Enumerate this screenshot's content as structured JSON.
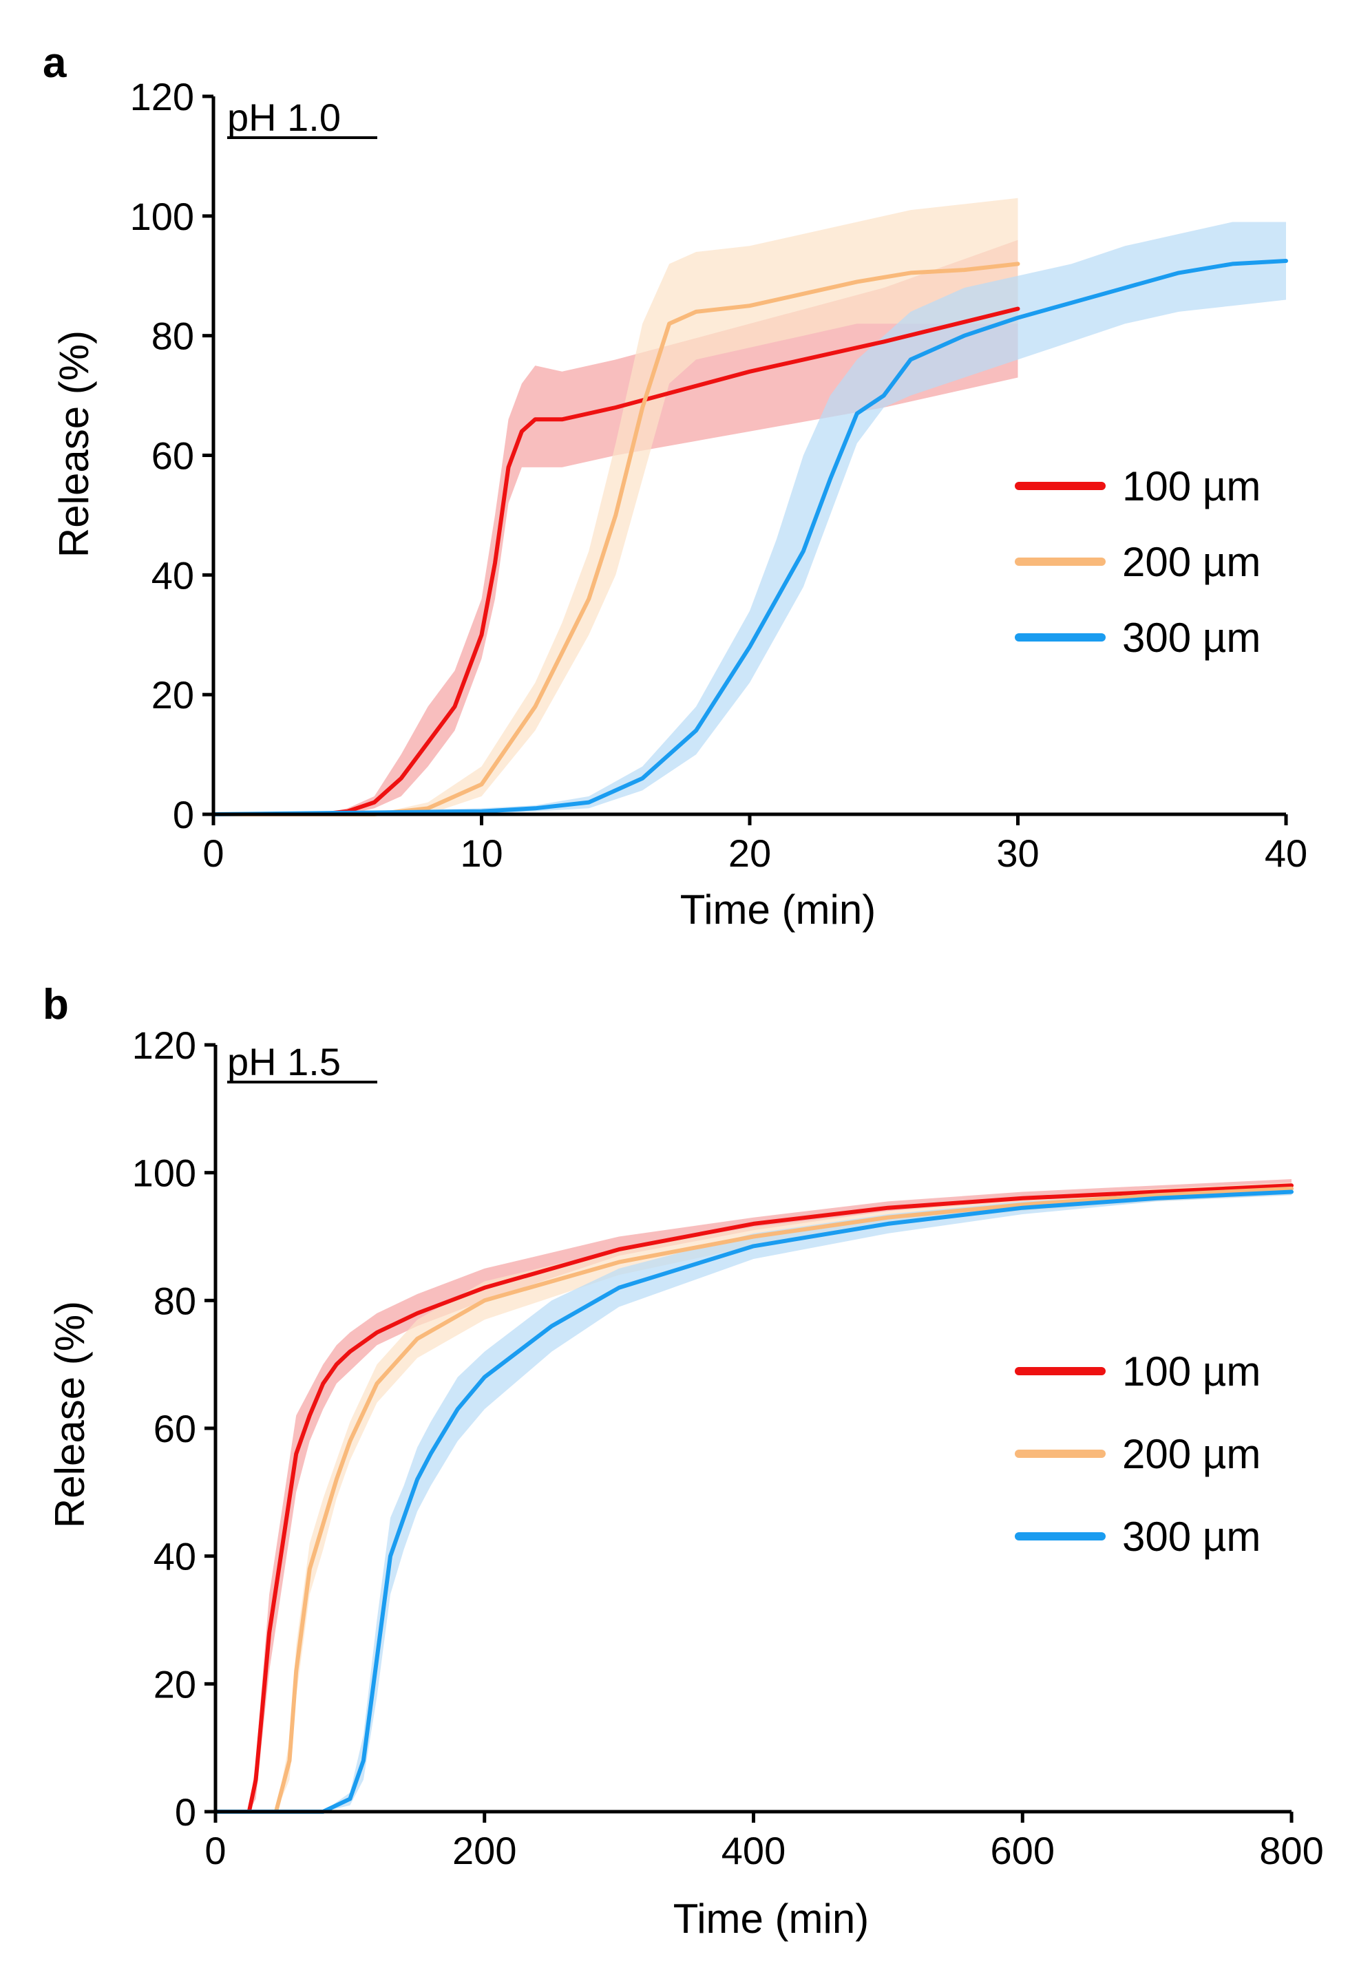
{
  "chart_data": [
    {
      "type": "line",
      "panel": "a",
      "condition": "pH 1.0",
      "xlabel": "Time (min)",
      "ylabel": "Release (%)",
      "xlim": [
        0,
        40
      ],
      "ylim": [
        0,
        120
      ],
      "xticks": [
        0,
        10,
        20,
        30,
        40
      ],
      "yticks": [
        0,
        20,
        40,
        60,
        80,
        100,
        120
      ],
      "legend_position": "right-middle",
      "shaded_band": true,
      "series": [
        {
          "name": "100 µm",
          "color": "#ee1111",
          "band_color": "#f5a3a3",
          "x": [
            0,
            4,
            5,
            6,
            7,
            8,
            9,
            10,
            10.5,
            11,
            11.5,
            12,
            13,
            15,
            20,
            25,
            30
          ],
          "y": [
            0,
            0,
            0.5,
            2,
            6,
            12,
            18,
            30,
            42,
            58,
            64,
            66,
            66,
            68,
            74,
            79,
            84.5
          ],
          "lower": [
            0,
            0,
            0,
            1,
            3,
            8,
            14,
            26,
            36,
            52,
            58,
            58,
            58,
            60,
            64,
            68,
            73
          ],
          "upper": [
            0,
            0,
            1,
            3,
            10,
            18,
            24,
            36,
            50,
            66,
            72,
            75,
            74,
            76,
            82,
            88,
            96
          ]
        },
        {
          "name": "200 µm",
          "color": "#f9b97a",
          "band_color": "#fce2c8",
          "x": [
            0,
            6,
            8,
            10,
            12,
            13,
            14,
            15,
            16,
            17,
            18,
            20,
            22,
            24,
            26,
            28,
            30
          ],
          "y": [
            0,
            0,
            1,
            5,
            18,
            27,
            36,
            50,
            68,
            82,
            84,
            85,
            87,
            89,
            90.5,
            91,
            92
          ],
          "lower": [
            0,
            0,
            0,
            3,
            14,
            22,
            30,
            40,
            56,
            72,
            76,
            78,
            80,
            82,
            82,
            82,
            82
          ],
          "upper": [
            0,
            0,
            2,
            8,
            22,
            32,
            44,
            62,
            82,
            92,
            94,
            95,
            97,
            99,
            101,
            102,
            103
          ]
        },
        {
          "name": "300 µm",
          "color": "#1a9cf0",
          "band_color": "#b8dcf7",
          "x": [
            0,
            10,
            12,
            14,
            16,
            18,
            20,
            21,
            22,
            23,
            24,
            25,
            26,
            28,
            30,
            32,
            34,
            36,
            38,
            40
          ],
          "y": [
            0,
            0.5,
            1,
            2,
            6,
            14,
            28,
            36,
            44,
            56,
            67,
            70,
            76,
            80,
            83,
            85.5,
            88,
            90.5,
            92,
            92.5
          ],
          "lower": [
            0,
            0,
            0.5,
            1,
            4,
            10,
            22,
            30,
            38,
            50,
            62,
            68,
            70,
            73,
            76,
            79,
            82,
            84,
            85,
            86
          ],
          "upper": [
            0,
            1,
            1.5,
            3,
            8,
            18,
            34,
            46,
            60,
            70,
            76,
            80,
            84,
            88,
            90,
            92,
            95,
            97,
            99,
            99
          ]
        }
      ]
    },
    {
      "type": "line",
      "panel": "b",
      "condition": "pH 1.5",
      "xlabel": "Time (min)",
      "ylabel": "Release (%)",
      "xlim": [
        0,
        800
      ],
      "ylim": [
        0,
        120
      ],
      "xticks": [
        0,
        200,
        400,
        600,
        800
      ],
      "yticks": [
        0,
        20,
        40,
        60,
        80,
        100,
        120
      ],
      "legend_position": "right-middle",
      "shaded_band": true,
      "series": [
        {
          "name": "100 µm",
          "color": "#ee1111",
          "band_color": "#f5a3a3",
          "x": [
            0,
            25,
            30,
            40,
            50,
            60,
            70,
            80,
            90,
            100,
            120,
            150,
            200,
            300,
            400,
            500,
            600,
            700,
            800
          ],
          "y": [
            0,
            0,
            5,
            28,
            42,
            56,
            62,
            67,
            70,
            72,
            75,
            78,
            82,
            88,
            92,
            94.5,
            96,
            97,
            98
          ],
          "lower": [
            0,
            0,
            2,
            22,
            36,
            50,
            58,
            63,
            67,
            69,
            73,
            76,
            80,
            87,
            91,
            94,
            95.5,
            96.5,
            97.5
          ],
          "upper": [
            0,
            0,
            8,
            34,
            48,
            62,
            66,
            70,
            73,
            75,
            78,
            81,
            85,
            90,
            93,
            95.5,
            97,
            98,
            99
          ]
        },
        {
          "name": "200 µm",
          "color": "#f9b97a",
          "band_color": "#fce2c8",
          "x": [
            0,
            45,
            55,
            60,
            70,
            80,
            90,
            100,
            120,
            150,
            200,
            300,
            400,
            500,
            600,
            700,
            800
          ],
          "y": [
            0,
            0,
            8,
            22,
            38,
            45,
            52,
            58,
            67,
            74,
            80,
            86,
            90,
            93,
            95,
            96.5,
            97.5
          ],
          "lower": [
            0,
            0,
            5,
            18,
            34,
            41,
            49,
            55,
            64,
            71,
            77,
            84,
            88.5,
            92,
            94,
            95.5,
            96.5
          ],
          "upper": [
            0,
            0,
            11,
            26,
            42,
            49,
            55,
            61,
            70,
            77,
            83,
            88,
            91.5,
            94,
            96,
            97.5,
            98.5
          ]
        },
        {
          "name": "300 µm",
          "color": "#1a9cf0",
          "band_color": "#b8dcf7",
          "x": [
            0,
            80,
            100,
            110,
            120,
            130,
            140,
            150,
            160,
            180,
            200,
            250,
            300,
            400,
            500,
            600,
            700,
            800
          ],
          "y": [
            0,
            0,
            2,
            8,
            24,
            40,
            46,
            52,
            56,
            63,
            68,
            76,
            82,
            88.5,
            92,
            94.5,
            96,
            97
          ],
          "lower": [
            0,
            0,
            1,
            5,
            18,
            34,
            41,
            47,
            51,
            58,
            63,
            72,
            79,
            86.5,
            90.5,
            93.5,
            95.5,
            96.5
          ],
          "upper": [
            0,
            0,
            3,
            12,
            30,
            46,
            51,
            57,
            61,
            68,
            72,
            80,
            85,
            90.5,
            93.5,
            95.5,
            96.5,
            97.5
          ]
        }
      ]
    }
  ]
}
